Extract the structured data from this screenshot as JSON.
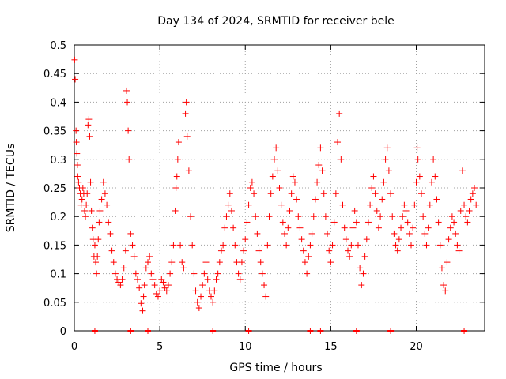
{
  "chart_data": {
    "type": "scatter",
    "title": "Day 134 of 2024, SRMTID for receiver bele",
    "xlabel": "GPS time / hours",
    "ylabel": "SRMTID / TECUs",
    "xlim": [
      0,
      24
    ],
    "ylim": [
      0,
      0.5
    ],
    "xticks": [
      0,
      5,
      10,
      15,
      20
    ],
    "xtick_labels": [
      "0",
      "5",
      "10",
      "15",
      "20"
    ],
    "yticks": [
      0,
      0.05,
      0.1,
      0.15,
      0.2,
      0.25,
      0.3,
      0.35,
      0.4,
      0.45,
      0.5
    ],
    "ytick_labels": [
      "0",
      "0.05",
      "0.1",
      "0.15",
      "0.2",
      "0.25",
      "0.3",
      "0.35",
      "0.4",
      "0.45",
      "0.5"
    ],
    "grid": true,
    "marker": "+",
    "color": "#ff0000",
    "series": [
      {
        "name": "SRMTID",
        "points": [
          [
            0.02,
            0.474
          ],
          [
            0.05,
            0.44
          ],
          [
            0.1,
            0.35
          ],
          [
            0.12,
            0.33
          ],
          [
            0.15,
            0.31
          ],
          [
            0.18,
            0.29
          ],
          [
            0.2,
            0.27
          ],
          [
            0.25,
            0.26
          ],
          [
            0.3,
            0.25
          ],
          [
            0.35,
            0.24
          ],
          [
            0.4,
            0.22
          ],
          [
            0.45,
            0.23
          ],
          [
            0.5,
            0.25
          ],
          [
            0.55,
            0.24
          ],
          [
            0.6,
            0.21
          ],
          [
            0.65,
            0.2
          ],
          [
            0.7,
            0.22
          ],
          [
            0.75,
            0.24
          ],
          [
            0.8,
            0.36
          ],
          [
            0.85,
            0.37
          ],
          [
            0.9,
            0.34
          ],
          [
            0.95,
            0.26
          ],
          [
            1.0,
            0.21
          ],
          [
            1.05,
            0.18
          ],
          [
            1.1,
            0.16
          ],
          [
            1.15,
            0.13
          ],
          [
            1.2,
            0.15
          ],
          [
            1.25,
            0.12
          ],
          [
            1.3,
            0.1
          ],
          [
            1.35,
            0.13
          ],
          [
            1.4,
            0.16
          ],
          [
            1.45,
            0.19
          ],
          [
            1.5,
            0.21
          ],
          [
            1.6,
            0.23
          ],
          [
            1.7,
            0.26
          ],
          [
            1.8,
            0.24
          ],
          [
            1.9,
            0.22
          ],
          [
            2.0,
            0.19
          ],
          [
            2.1,
            0.17
          ],
          [
            2.2,
            0.14
          ],
          [
            2.3,
            0.12
          ],
          [
            2.4,
            0.1
          ],
          [
            2.5,
            0.09
          ],
          [
            2.6,
            0.085
          ],
          [
            2.7,
            0.08
          ],
          [
            2.8,
            0.09
          ],
          [
            2.9,
            0.11
          ],
          [
            3.0,
            0.14
          ],
          [
            3.05,
            0.42
          ],
          [
            3.1,
            0.4
          ],
          [
            3.15,
            0.35
          ],
          [
            3.2,
            0.3
          ],
          [
            3.3,
            0.17
          ],
          [
            3.4,
            0.15
          ],
          [
            3.5,
            0.13
          ],
          [
            3.6,
            0.1
          ],
          [
            3.7,
            0.09
          ],
          [
            3.8,
            0.075
          ],
          [
            3.9,
            0.048
          ],
          [
            4.0,
            0.035
          ],
          [
            4.05,
            0.06
          ],
          [
            4.1,
            0.08
          ],
          [
            4.2,
            0.11
          ],
          [
            4.3,
            0.12
          ],
          [
            4.4,
            0.13
          ],
          [
            4.5,
            0.1
          ],
          [
            4.6,
            0.09
          ],
          [
            4.7,
            0.08
          ],
          [
            4.8,
            0.065
          ],
          [
            4.9,
            0.06
          ],
          [
            5.0,
            0.07
          ],
          [
            5.1,
            0.09
          ],
          [
            5.2,
            0.085
          ],
          [
            5.3,
            0.075
          ],
          [
            5.4,
            0.07
          ],
          [
            5.5,
            0.08
          ],
          [
            5.6,
            0.1
          ],
          [
            5.7,
            0.12
          ],
          [
            5.8,
            0.15
          ],
          [
            5.9,
            0.21
          ],
          [
            5.95,
            0.25
          ],
          [
            6.0,
            0.27
          ],
          [
            6.05,
            0.3
          ],
          [
            6.1,
            0.33
          ],
          [
            6.2,
            0.15
          ],
          [
            6.3,
            0.12
          ],
          [
            6.4,
            0.11
          ],
          [
            6.5,
            0.38
          ],
          [
            6.55,
            0.4
          ],
          [
            6.6,
            0.34
          ],
          [
            6.7,
            0.28
          ],
          [
            6.8,
            0.2
          ],
          [
            6.9,
            0.15
          ],
          [
            7.0,
            0.1
          ],
          [
            7.1,
            0.07
          ],
          [
            7.2,
            0.05
          ],
          [
            7.3,
            0.04
          ],
          [
            7.4,
            0.06
          ],
          [
            7.5,
            0.08
          ],
          [
            7.6,
            0.1
          ],
          [
            7.7,
            0.12
          ],
          [
            7.8,
            0.09
          ],
          [
            7.9,
            0.07
          ],
          [
            8.0,
            0.06
          ],
          [
            8.1,
            0.05
          ],
          [
            8.2,
            0.07
          ],
          [
            8.3,
            0.09
          ],
          [
            8.4,
            0.1
          ],
          [
            8.5,
            0.12
          ],
          [
            8.6,
            0.14
          ],
          [
            8.7,
            0.15
          ],
          [
            8.8,
            0.18
          ],
          [
            8.9,
            0.2
          ],
          [
            9.0,
            0.22
          ],
          [
            9.1,
            0.24
          ],
          [
            9.2,
            0.21
          ],
          [
            9.3,
            0.18
          ],
          [
            9.4,
            0.15
          ],
          [
            9.5,
            0.12
          ],
          [
            9.6,
            0.1
          ],
          [
            9.7,
            0.09
          ],
          [
            9.8,
            0.12
          ],
          [
            9.9,
            0.14
          ],
          [
            10.0,
            0.16
          ],
          [
            10.1,
            0.19
          ],
          [
            10.2,
            0.22
          ],
          [
            10.3,
            0.25
          ],
          [
            10.4,
            0.26
          ],
          [
            10.5,
            0.24
          ],
          [
            10.6,
            0.2
          ],
          [
            10.7,
            0.17
          ],
          [
            10.8,
            0.14
          ],
          [
            10.9,
            0.12
          ],
          [
            11.0,
            0.1
          ],
          [
            11.1,
            0.08
          ],
          [
            11.2,
            0.06
          ],
          [
            11.3,
            0.15
          ],
          [
            11.4,
            0.2
          ],
          [
            11.5,
            0.24
          ],
          [
            11.6,
            0.27
          ],
          [
            11.7,
            0.3
          ],
          [
            11.8,
            0.32
          ],
          [
            11.9,
            0.28
          ],
          [
            12.0,
            0.25
          ],
          [
            12.1,
            0.22
          ],
          [
            12.2,
            0.19
          ],
          [
            12.3,
            0.17
          ],
          [
            12.4,
            0.15
          ],
          [
            12.5,
            0.18
          ],
          [
            12.6,
            0.21
          ],
          [
            12.7,
            0.24
          ],
          [
            12.8,
            0.27
          ],
          [
            12.9,
            0.26
          ],
          [
            13.0,
            0.23
          ],
          [
            13.1,
            0.2
          ],
          [
            13.2,
            0.18
          ],
          [
            13.3,
            0.16
          ],
          [
            13.4,
            0.14
          ],
          [
            13.5,
            0.12
          ],
          [
            13.6,
            0.1
          ],
          [
            13.7,
            0.13
          ],
          [
            13.8,
            0.15
          ],
          [
            13.9,
            0.17
          ],
          [
            14.0,
            0.2
          ],
          [
            14.1,
            0.23
          ],
          [
            14.2,
            0.26
          ],
          [
            14.3,
            0.29
          ],
          [
            14.4,
            0.32
          ],
          [
            14.5,
            0.28
          ],
          [
            14.6,
            0.24
          ],
          [
            14.7,
            0.2
          ],
          [
            14.8,
            0.17
          ],
          [
            14.9,
            0.14
          ],
          [
            15.0,
            0.12
          ],
          [
            15.1,
            0.15
          ],
          [
            15.2,
            0.19
          ],
          [
            15.3,
            0.24
          ],
          [
            15.4,
            0.33
          ],
          [
            15.5,
            0.38
          ],
          [
            15.6,
            0.3
          ],
          [
            15.7,
            0.22
          ],
          [
            15.8,
            0.18
          ],
          [
            15.9,
            0.16
          ],
          [
            16.0,
            0.14
          ],
          [
            16.1,
            0.13
          ],
          [
            16.2,
            0.15
          ],
          [
            16.3,
            0.18
          ],
          [
            16.4,
            0.21
          ],
          [
            16.5,
            0.19
          ],
          [
            16.6,
            0.15
          ],
          [
            16.7,
            0.11
          ],
          [
            16.8,
            0.08
          ],
          [
            16.9,
            0.1
          ],
          [
            17.0,
            0.13
          ],
          [
            17.1,
            0.16
          ],
          [
            17.2,
            0.19
          ],
          [
            17.3,
            0.22
          ],
          [
            17.4,
            0.25
          ],
          [
            17.5,
            0.27
          ],
          [
            17.6,
            0.24
          ],
          [
            17.7,
            0.21
          ],
          [
            17.8,
            0.18
          ],
          [
            17.9,
            0.2
          ],
          [
            18.0,
            0.23
          ],
          [
            18.1,
            0.26
          ],
          [
            18.2,
            0.3
          ],
          [
            18.3,
            0.32
          ],
          [
            18.4,
            0.28
          ],
          [
            18.5,
            0.24
          ],
          [
            18.6,
            0.2
          ],
          [
            18.7,
            0.17
          ],
          [
            18.8,
            0.15
          ],
          [
            18.9,
            0.14
          ],
          [
            19.0,
            0.16
          ],
          [
            19.1,
            0.18
          ],
          [
            19.2,
            0.2
          ],
          [
            19.3,
            0.22
          ],
          [
            19.4,
            0.21
          ],
          [
            19.5,
            0.19
          ],
          [
            19.6,
            0.17
          ],
          [
            19.7,
            0.15
          ],
          [
            19.8,
            0.18
          ],
          [
            19.9,
            0.22
          ],
          [
            20.0,
            0.26
          ],
          [
            20.05,
            0.32
          ],
          [
            20.1,
            0.3
          ],
          [
            20.2,
            0.27
          ],
          [
            20.3,
            0.24
          ],
          [
            20.4,
            0.2
          ],
          [
            20.5,
            0.17
          ],
          [
            20.6,
            0.15
          ],
          [
            20.7,
            0.18
          ],
          [
            20.8,
            0.22
          ],
          [
            20.9,
            0.26
          ],
          [
            21.0,
            0.3
          ],
          [
            21.1,
            0.27
          ],
          [
            21.2,
            0.23
          ],
          [
            21.3,
            0.19
          ],
          [
            21.4,
            0.15
          ],
          [
            21.5,
            0.11
          ],
          [
            21.6,
            0.08
          ],
          [
            21.7,
            0.07
          ],
          [
            21.8,
            0.12
          ],
          [
            21.9,
            0.16
          ],
          [
            22.0,
            0.18
          ],
          [
            22.1,
            0.2
          ],
          [
            22.2,
            0.19
          ],
          [
            22.3,
            0.17
          ],
          [
            22.4,
            0.15
          ],
          [
            22.5,
            0.14
          ],
          [
            22.6,
            0.21
          ],
          [
            22.7,
            0.28
          ],
          [
            22.8,
            0.22
          ],
          [
            22.9,
            0.2
          ],
          [
            23.0,
            0.19
          ],
          [
            23.1,
            0.21
          ],
          [
            23.2,
            0.23
          ],
          [
            23.3,
            0.24
          ],
          [
            23.4,
            0.25
          ],
          [
            23.5,
            0.22
          ]
        ]
      }
    ],
    "zero_markers_x": [
      1.2,
      3.3,
      4.3,
      8.1,
      10.2,
      13.8,
      14.4,
      16.5,
      18.5,
      22.8
    ]
  }
}
